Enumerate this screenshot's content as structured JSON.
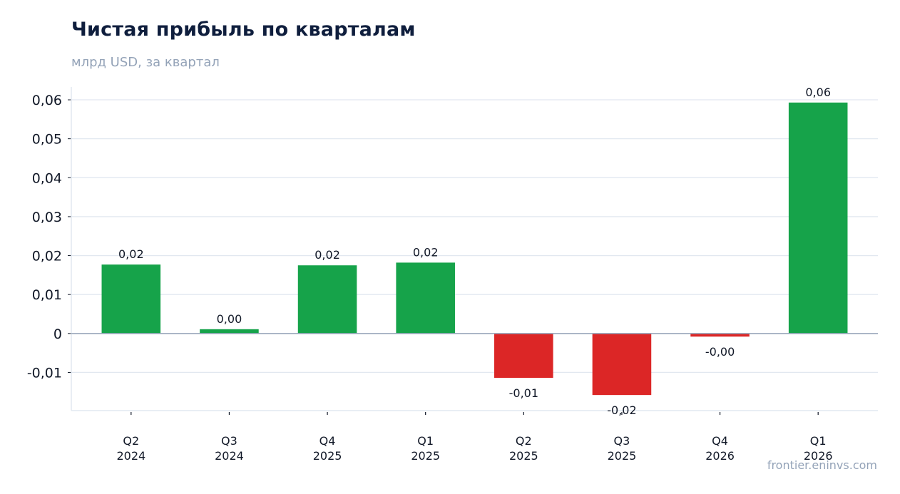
{
  "chart_data": {
    "type": "bar",
    "title": "Чистая прибыль по кварталам",
    "subtitle": "млрд USD, за квартал",
    "categories": [
      [
        "Q2",
        "2024"
      ],
      [
        "Q3",
        "2024"
      ],
      [
        "Q4",
        "2025"
      ],
      [
        "Q1",
        "2025"
      ],
      [
        "Q2",
        "2025"
      ],
      [
        "Q3",
        "2025"
      ],
      [
        "Q4",
        "2026"
      ],
      [
        "Q1",
        "2026"
      ]
    ],
    "values": [
      0.0177,
      0.0011,
      0.0175,
      0.0182,
      -0.0114,
      -0.0158,
      -0.0008,
      0.0593
    ],
    "data_labels": [
      "0,02",
      "0,00",
      "0,02",
      "0,02",
      "-0,01",
      "-0,02",
      "-0,00",
      "0,06"
    ],
    "ylim": [
      -0.0198,
      0.0633
    ],
    "yticks": [
      -0.01,
      0,
      0.01,
      0.02,
      0.03,
      0.04,
      0.05,
      0.06
    ],
    "ytick_labels": [
      "-0,01",
      "0",
      "0,01",
      "0,02",
      "0,03",
      "0,04",
      "0,05",
      "0,06"
    ],
    "xlabel": "",
    "ylabel": "",
    "grid": true,
    "colors": {
      "positive": "#16a34a",
      "negative": "#dc2626",
      "grid": "#e2e8f0",
      "zero_line": "#94a3b8",
      "axis": "#e2e8f0"
    }
  },
  "source": "frontier.eninvs.com"
}
